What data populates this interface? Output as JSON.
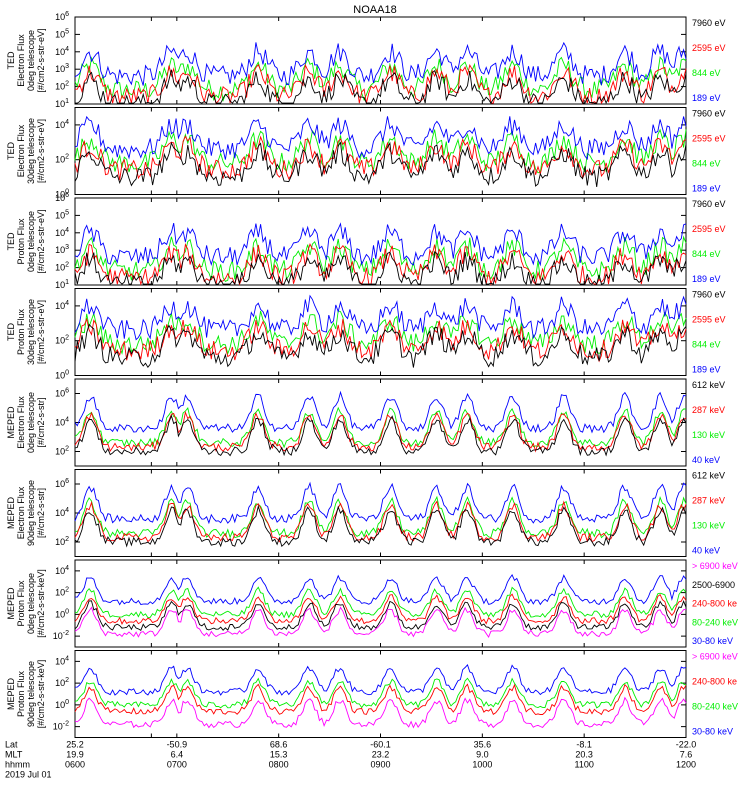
{
  "chart_data": {
    "type": "line",
    "title": "NOAA18",
    "colors": {
      "black": "#000000",
      "red": "#ff0000",
      "green": "#00ee00",
      "blue": "#0000ff",
      "magenta": "#ff00ff"
    },
    "panels": [
      {
        "id": "ted-electron-0",
        "instrument": "TED",
        "ylabel_lines": [
          "Electron Flux",
          "0deg telescope",
          "[#/cm2-s-str-eV]"
        ],
        "ytick_exponents": [
          1,
          2,
          3,
          4,
          5,
          6
        ],
        "yrange_exp": [
          1,
          6
        ],
        "legend": [
          {
            "label": "7960 eV",
            "color": "black"
          },
          {
            "label": "2595 eV",
            "color": "red"
          },
          {
            "label": "844 eV",
            "color": "green"
          },
          {
            "label": "189 eV",
            "color": "blue"
          }
        ]
      },
      {
        "id": "ted-electron-30",
        "instrument": "TED",
        "ylabel_lines": [
          "Electron Flux",
          "30deg telescope",
          "[#/cm2-s-str-eV]"
        ],
        "ytick_exponents": [
          0,
          2,
          4
        ],
        "yrange_exp": [
          0,
          5
        ],
        "legend": [
          {
            "label": "7960 eV",
            "color": "black"
          },
          {
            "label": "2595 eV",
            "color": "red"
          },
          {
            "label": "844 eV",
            "color": "green"
          },
          {
            "label": "189 eV",
            "color": "blue"
          }
        ]
      },
      {
        "id": "ted-proton-0",
        "instrument": "TED",
        "ylabel_lines": [
          "Proton Flux",
          "0deg telescope",
          "[#/cm2-s-str-eV]"
        ],
        "ytick_exponents": [
          1,
          2,
          3,
          4,
          5,
          6
        ],
        "yrange_exp": [
          1,
          6
        ],
        "legend": [
          {
            "label": "7960 eV",
            "color": "black"
          },
          {
            "label": "2595 eV",
            "color": "red"
          },
          {
            "label": "844 eV",
            "color": "green"
          },
          {
            "label": "189 eV",
            "color": "blue"
          }
        ]
      },
      {
        "id": "ted-proton-30",
        "instrument": "TED",
        "ylabel_lines": [
          "Proton Flux",
          "30deg telescope",
          "[#/cm2-s-str-eV]"
        ],
        "ytick_exponents": [
          0,
          2,
          4
        ],
        "yrange_exp": [
          0,
          5
        ],
        "legend": [
          {
            "label": "7960 eV",
            "color": "black"
          },
          {
            "label": "2595 eV",
            "color": "red"
          },
          {
            "label": "844 eV",
            "color": "green"
          },
          {
            "label": "189 eV",
            "color": "blue"
          }
        ]
      },
      {
        "id": "meped-electron-0",
        "instrument": "MEPED",
        "ylabel_lines": [
          "Electron Flux",
          "0deg telescope",
          "[#/cm2-s-str]"
        ],
        "ytick_exponents": [
          2,
          4,
          6
        ],
        "yrange_exp": [
          1,
          7
        ],
        "legend": [
          {
            "label": "612 keV",
            "color": "black"
          },
          {
            "label": "287 keV",
            "color": "red"
          },
          {
            "label": "130 keV",
            "color": "green"
          },
          {
            "label": "40 keV",
            "color": "blue"
          }
        ]
      },
      {
        "id": "meped-electron-90",
        "instrument": "MEPED",
        "ylabel_lines": [
          "Electron Flux",
          "90deg telescope",
          "[#/cm2-s-str]"
        ],
        "ytick_exponents": [
          2,
          4,
          6
        ],
        "yrange_exp": [
          1,
          7
        ],
        "legend": [
          {
            "label": "612 keV",
            "color": "black"
          },
          {
            "label": "287 keV",
            "color": "red"
          },
          {
            "label": "130 keV",
            "color": "green"
          },
          {
            "label": "40 keV",
            "color": "blue"
          }
        ]
      },
      {
        "id": "meped-proton-0",
        "instrument": "MEPED",
        "ylabel_lines": [
          "Proton Flux",
          "0deg telescope",
          "[#/cm2-s-str-keV]"
        ],
        "ytick_exponents": [
          -2,
          0,
          2,
          4
        ],
        "yrange_exp": [
          -3,
          5
        ],
        "legend": [
          {
            "label": "> 6900 keV",
            "color": "magenta"
          },
          {
            "label": "2500-6900",
            "color": "black"
          },
          {
            "label": "240-800 ke",
            "color": "red"
          },
          {
            "label": "80-240 keV",
            "color": "green"
          },
          {
            "label": "30-80 keV",
            "color": "blue"
          }
        ]
      },
      {
        "id": "meped-proton-90",
        "instrument": "MEPED",
        "ylabel_lines": [
          "Proton Flux",
          "90deg telescope",
          "[#/cm2-s-str-keV]"
        ],
        "ytick_exponents": [
          -2,
          0,
          2,
          4
        ],
        "yrange_exp": [
          -3,
          5
        ],
        "legend": [
          {
            "label": "> 6900 keV",
            "color": "magenta"
          },
          {
            "label": "240-800 ke",
            "color": "red"
          },
          {
            "label": "80-240 keV",
            "color": "green"
          },
          {
            "label": "30-80 keV",
            "color": "blue"
          }
        ]
      }
    ],
    "xaxis": {
      "range_hours": [
        6.0,
        12.0
      ],
      "row_labels": [
        "Lat",
        "MLT",
        "hhmm"
      ],
      "ticks": [
        {
          "hour": 6.0,
          "lat": "25.2",
          "mlt": "19.9",
          "hhmm": "0600"
        },
        {
          "hour": 6.75,
          "lat": "",
          "mlt": "",
          "hhmm": ""
        },
        {
          "hour": 7.0,
          "lat": "-50.9",
          "mlt": "6.4",
          "hhmm": "0700"
        },
        {
          "hour": 8.0,
          "lat": "68.6",
          "mlt": "15.3",
          "hhmm": "0800"
        },
        {
          "hour": 9.0,
          "lat": "-60.1",
          "mlt": "23.2",
          "hhmm": "0900"
        },
        {
          "hour": 10.0,
          "lat": "35.6",
          "mlt": "9.0",
          "hhmm": "1000"
        },
        {
          "hour": 11.0,
          "lat": "-8.1",
          "mlt": "20.3",
          "hhmm": "1100"
        },
        {
          "hour": 12.0,
          "lat": "-22.0",
          "mlt": "7.6",
          "hhmm": "1200"
        }
      ],
      "date": "2019 Jul 01"
    },
    "pass_centers_hours": [
      6.15,
      6.95,
      7.1,
      7.8,
      8.3,
      8.6,
      9.1,
      9.55,
      9.85,
      10.3,
      10.8,
      11.4,
      11.75,
      11.98
    ],
    "series_levels_exp": {
      "ted": {
        "blue": 2.6,
        "green": 1.8,
        "red": 1.4,
        "black": 1.0
      },
      "meped_electron": {
        "blue": 3.6,
        "green": 2.6,
        "red": 2.3,
        "black": 2.0
      },
      "meped_proton": {
        "blue": 1.2,
        "green": 0.0,
        "red": -0.6,
        "black": -1.2,
        "magenta": -1.8
      }
    }
  }
}
